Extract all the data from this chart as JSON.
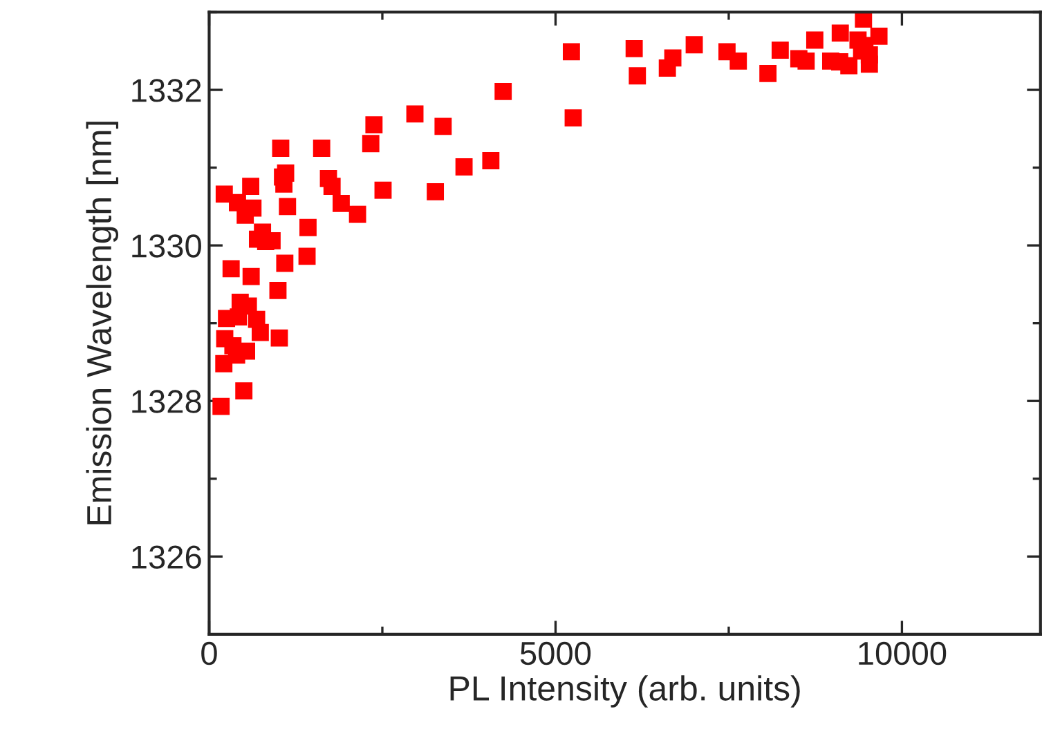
{
  "chart_data": {
    "type": "scatter",
    "xlabel": "PL Intensity (arb. units)",
    "ylabel": "Emission Wavelength [nm]",
    "xlim": [
      0,
      12000
    ],
    "xticks": [
      0,
      5000,
      10000
    ],
    "ylim": [
      1325,
      1333
    ],
    "yticks": [
      1326,
      1328,
      1330,
      1332
    ],
    "grid": false,
    "legend": false,
    "marker": "square",
    "series": [
      {
        "color": "#ff0000",
        "x": [
          5229,
          4244,
          5255,
          2970,
          3377,
          2379,
          2333,
          1033,
          1624,
          3679,
          4066,
          1104,
          1059,
          1079,
          1722,
          1774,
          2510,
          3265,
          600,
          218,
          409,
          632,
          521,
          1131,
          1906,
          2142,
          1427,
          770,
          698,
          908,
          816,
          1413,
          1092,
          317,
          606,
          993,
          448,
          566,
          251,
          422,
          685,
          738,
          225,
          1013,
          343,
          540,
          396,
          212,
          501,
          172,
          6135,
          6181,
          6693,
          6614,
          7002,
          7475,
          7638,
          8066,
          8243,
          8512,
          8617,
          8742,
          8972,
          9110,
          9102,
          9234,
          9445,
          9366,
          9668,
          9465,
          9530,
          9530,
          9418
        ],
        "values": [
          1332.49,
          1331.98,
          1331.64,
          1331.69,
          1331.53,
          1331.55,
          1331.31,
          1331.25,
          1331.25,
          1331.01,
          1331.09,
          1330.93,
          1330.88,
          1330.79,
          1330.86,
          1330.76,
          1330.71,
          1330.69,
          1330.76,
          1330.66,
          1330.55,
          1330.48,
          1330.39,
          1330.5,
          1330.54,
          1330.4,
          1330.23,
          1330.17,
          1330.08,
          1330.06,
          1330.05,
          1329.86,
          1329.77,
          1329.7,
          1329.6,
          1329.42,
          1329.27,
          1329.22,
          1329.06,
          1329.08,
          1329.05,
          1328.88,
          1328.8,
          1328.81,
          1328.71,
          1328.64,
          1328.59,
          1328.48,
          1328.13,
          1327.93,
          1332.53,
          1332.18,
          1332.41,
          1332.28,
          1332.58,
          1332.49,
          1332.37,
          1332.21,
          1332.51,
          1332.4,
          1332.37,
          1332.64,
          1332.37,
          1332.73,
          1332.36,
          1332.31,
          1332.91,
          1332.64,
          1332.69,
          1332.57,
          1332.33,
          1332.45,
          1332.5
        ]
      }
    ]
  }
}
